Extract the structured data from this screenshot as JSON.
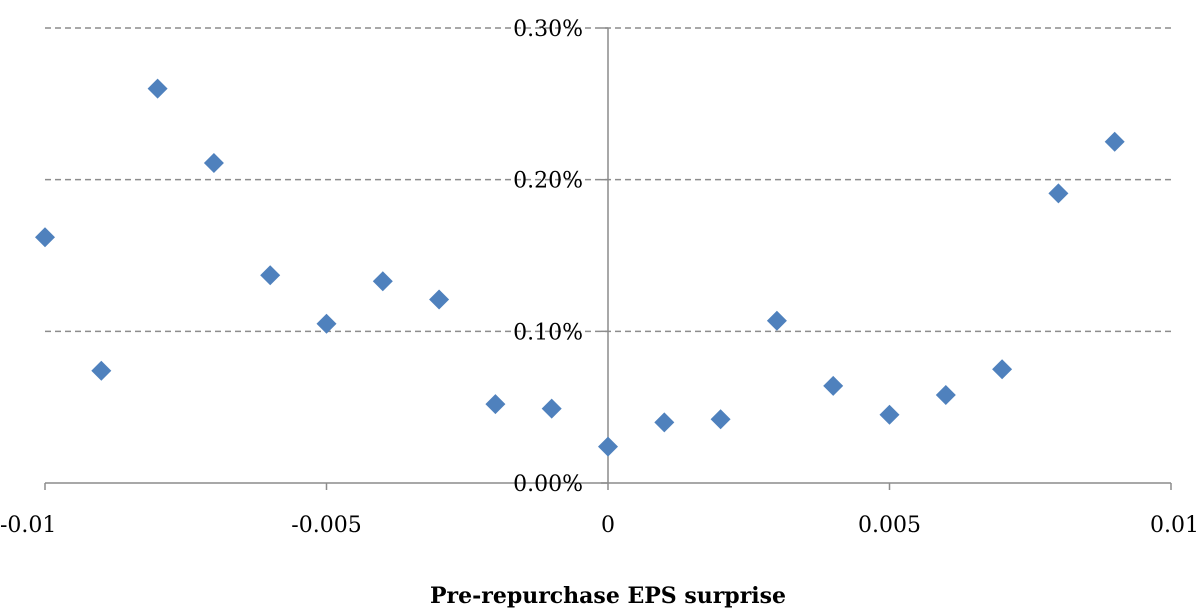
{
  "chart_data": {
    "type": "scatter",
    "xlabel": "Pre-repurchase EPS surprise",
    "ylabel": "",
    "xlim": [
      -0.01,
      0.01
    ],
    "ylim": [
      0,
      0.3
    ],
    "x_ticks": [
      "-0.01",
      "-0.005",
      "0",
      "0.005",
      "0.01"
    ],
    "x_tick_values": [
      -0.01,
      -0.005,
      0,
      0.005,
      0.01
    ],
    "y_ticks": [
      "0.00%",
      "0.10%",
      "0.20%",
      "0.30%"
    ],
    "y_tick_values": [
      0,
      0.1,
      0.2,
      0.3
    ],
    "grid": "horizontal-dashed",
    "marker": "diamond",
    "colors": {
      "marker": "#4f81bd",
      "grid": "#8c8c8c",
      "axis": "#8c8c8c"
    },
    "series": [
      {
        "points": [
          {
            "x": -0.01,
            "y": 0.162
          },
          {
            "x": -0.009,
            "y": 0.074
          },
          {
            "x": -0.008,
            "y": 0.26
          },
          {
            "x": -0.007,
            "y": 0.211
          },
          {
            "x": -0.006,
            "y": 0.137
          },
          {
            "x": -0.005,
            "y": 0.105
          },
          {
            "x": -0.004,
            "y": 0.133
          },
          {
            "x": -0.003,
            "y": 0.121
          },
          {
            "x": -0.002,
            "y": 0.052
          },
          {
            "x": -0.001,
            "y": 0.049
          },
          {
            "x": 0.0,
            "y": 0.024
          },
          {
            "x": 0.001,
            "y": 0.04
          },
          {
            "x": 0.002,
            "y": 0.042
          },
          {
            "x": 0.003,
            "y": 0.107
          },
          {
            "x": 0.004,
            "y": 0.064
          },
          {
            "x": 0.005,
            "y": 0.045
          },
          {
            "x": 0.006,
            "y": 0.058
          },
          {
            "x": 0.007,
            "y": 0.075
          },
          {
            "x": 0.008,
            "y": 0.191
          },
          {
            "x": 0.009,
            "y": 0.225
          }
        ]
      }
    ]
  }
}
